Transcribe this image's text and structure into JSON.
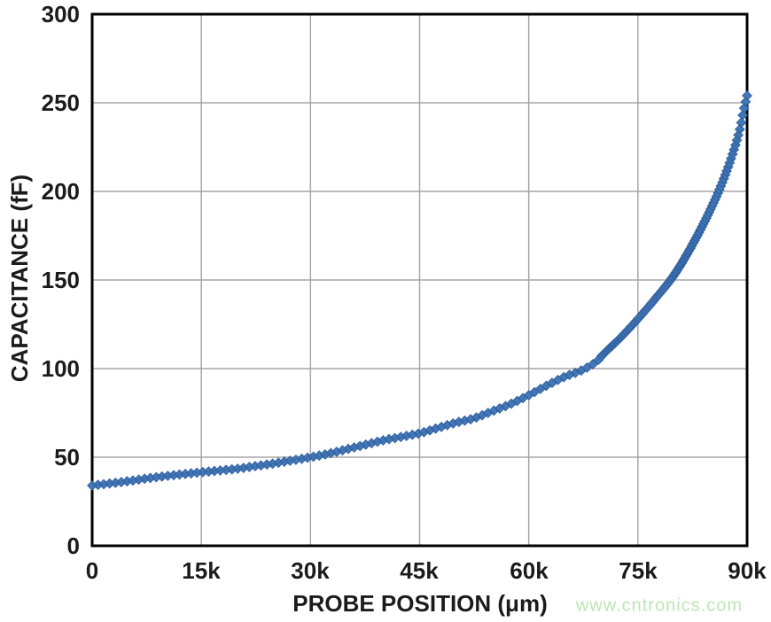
{
  "figure": {
    "watermark": {
      "text": "www.cntronics.com",
      "color": "#bde6b4"
    }
  },
  "chart_data": {
    "type": "scatter",
    "marker": "diamond",
    "title": "",
    "xlabel": "PROBE POSITION (μm)",
    "ylabel": "CAPACITANCE (fF)",
    "xlim": [
      0,
      90000
    ],
    "ylim": [
      0,
      300
    ],
    "grid": true,
    "grid_color": "#a6a6a6",
    "frame_color": "#000000",
    "x_ticks": {
      "values": [
        0,
        15000,
        30000,
        45000,
        60000,
        75000,
        90000
      ],
      "labels": [
        "0",
        "15k",
        "30k",
        "45k",
        "60k",
        "75k",
        "90k"
      ]
    },
    "y_ticks": {
      "values": [
        0,
        50,
        100,
        150,
        200,
        250,
        300
      ],
      "labels": [
        "0",
        "50",
        "100",
        "150",
        "200",
        "250",
        "300"
      ]
    },
    "series": [
      {
        "name": "capacitance_vs_probe_position",
        "color": "#4377b7",
        "edge_color": "#30609f",
        "marker": "diamond",
        "anchor_points": [
          [
            0,
            34
          ],
          [
            2500,
            35.2
          ],
          [
            5000,
            36.5
          ],
          [
            7500,
            38
          ],
          [
            10000,
            39.3
          ],
          [
            12500,
            40.4
          ],
          [
            15000,
            41.5
          ],
          [
            17500,
            42.5
          ],
          [
            20000,
            43.5
          ],
          [
            22500,
            45
          ],
          [
            25000,
            46.5
          ],
          [
            27500,
            48.2
          ],
          [
            30000,
            50
          ],
          [
            32500,
            52
          ],
          [
            35000,
            54.5
          ],
          [
            37500,
            57
          ],
          [
            40000,
            59.5
          ],
          [
            42500,
            61.5
          ],
          [
            45000,
            63.5
          ],
          [
            47500,
            66.5
          ],
          [
            50000,
            69.5
          ],
          [
            52500,
            72
          ],
          [
            55000,
            76
          ],
          [
            57500,
            80
          ],
          [
            60000,
            85
          ],
          [
            62500,
            90.5
          ],
          [
            65000,
            95.5
          ],
          [
            67500,
            99.5
          ],
          [
            69600,
            105
          ],
          [
            70000,
            107
          ],
          [
            72500,
            117
          ],
          [
            75000,
            128
          ],
          [
            77500,
            140
          ],
          [
            80000,
            153
          ],
          [
            82500,
            170
          ],
          [
            85000,
            190
          ],
          [
            86500,
            204
          ],
          [
            88000,
            221
          ],
          [
            89000,
            235
          ],
          [
            89600,
            247
          ],
          [
            90000,
            254
          ]
        ],
        "sampling_segments": [
          {
            "start": 0,
            "end": 69600,
            "step": 800,
            "density": "sparse"
          },
          {
            "start": 70000,
            "end": 90000,
            "step": 200,
            "density": "dense"
          }
        ]
      }
    ]
  }
}
